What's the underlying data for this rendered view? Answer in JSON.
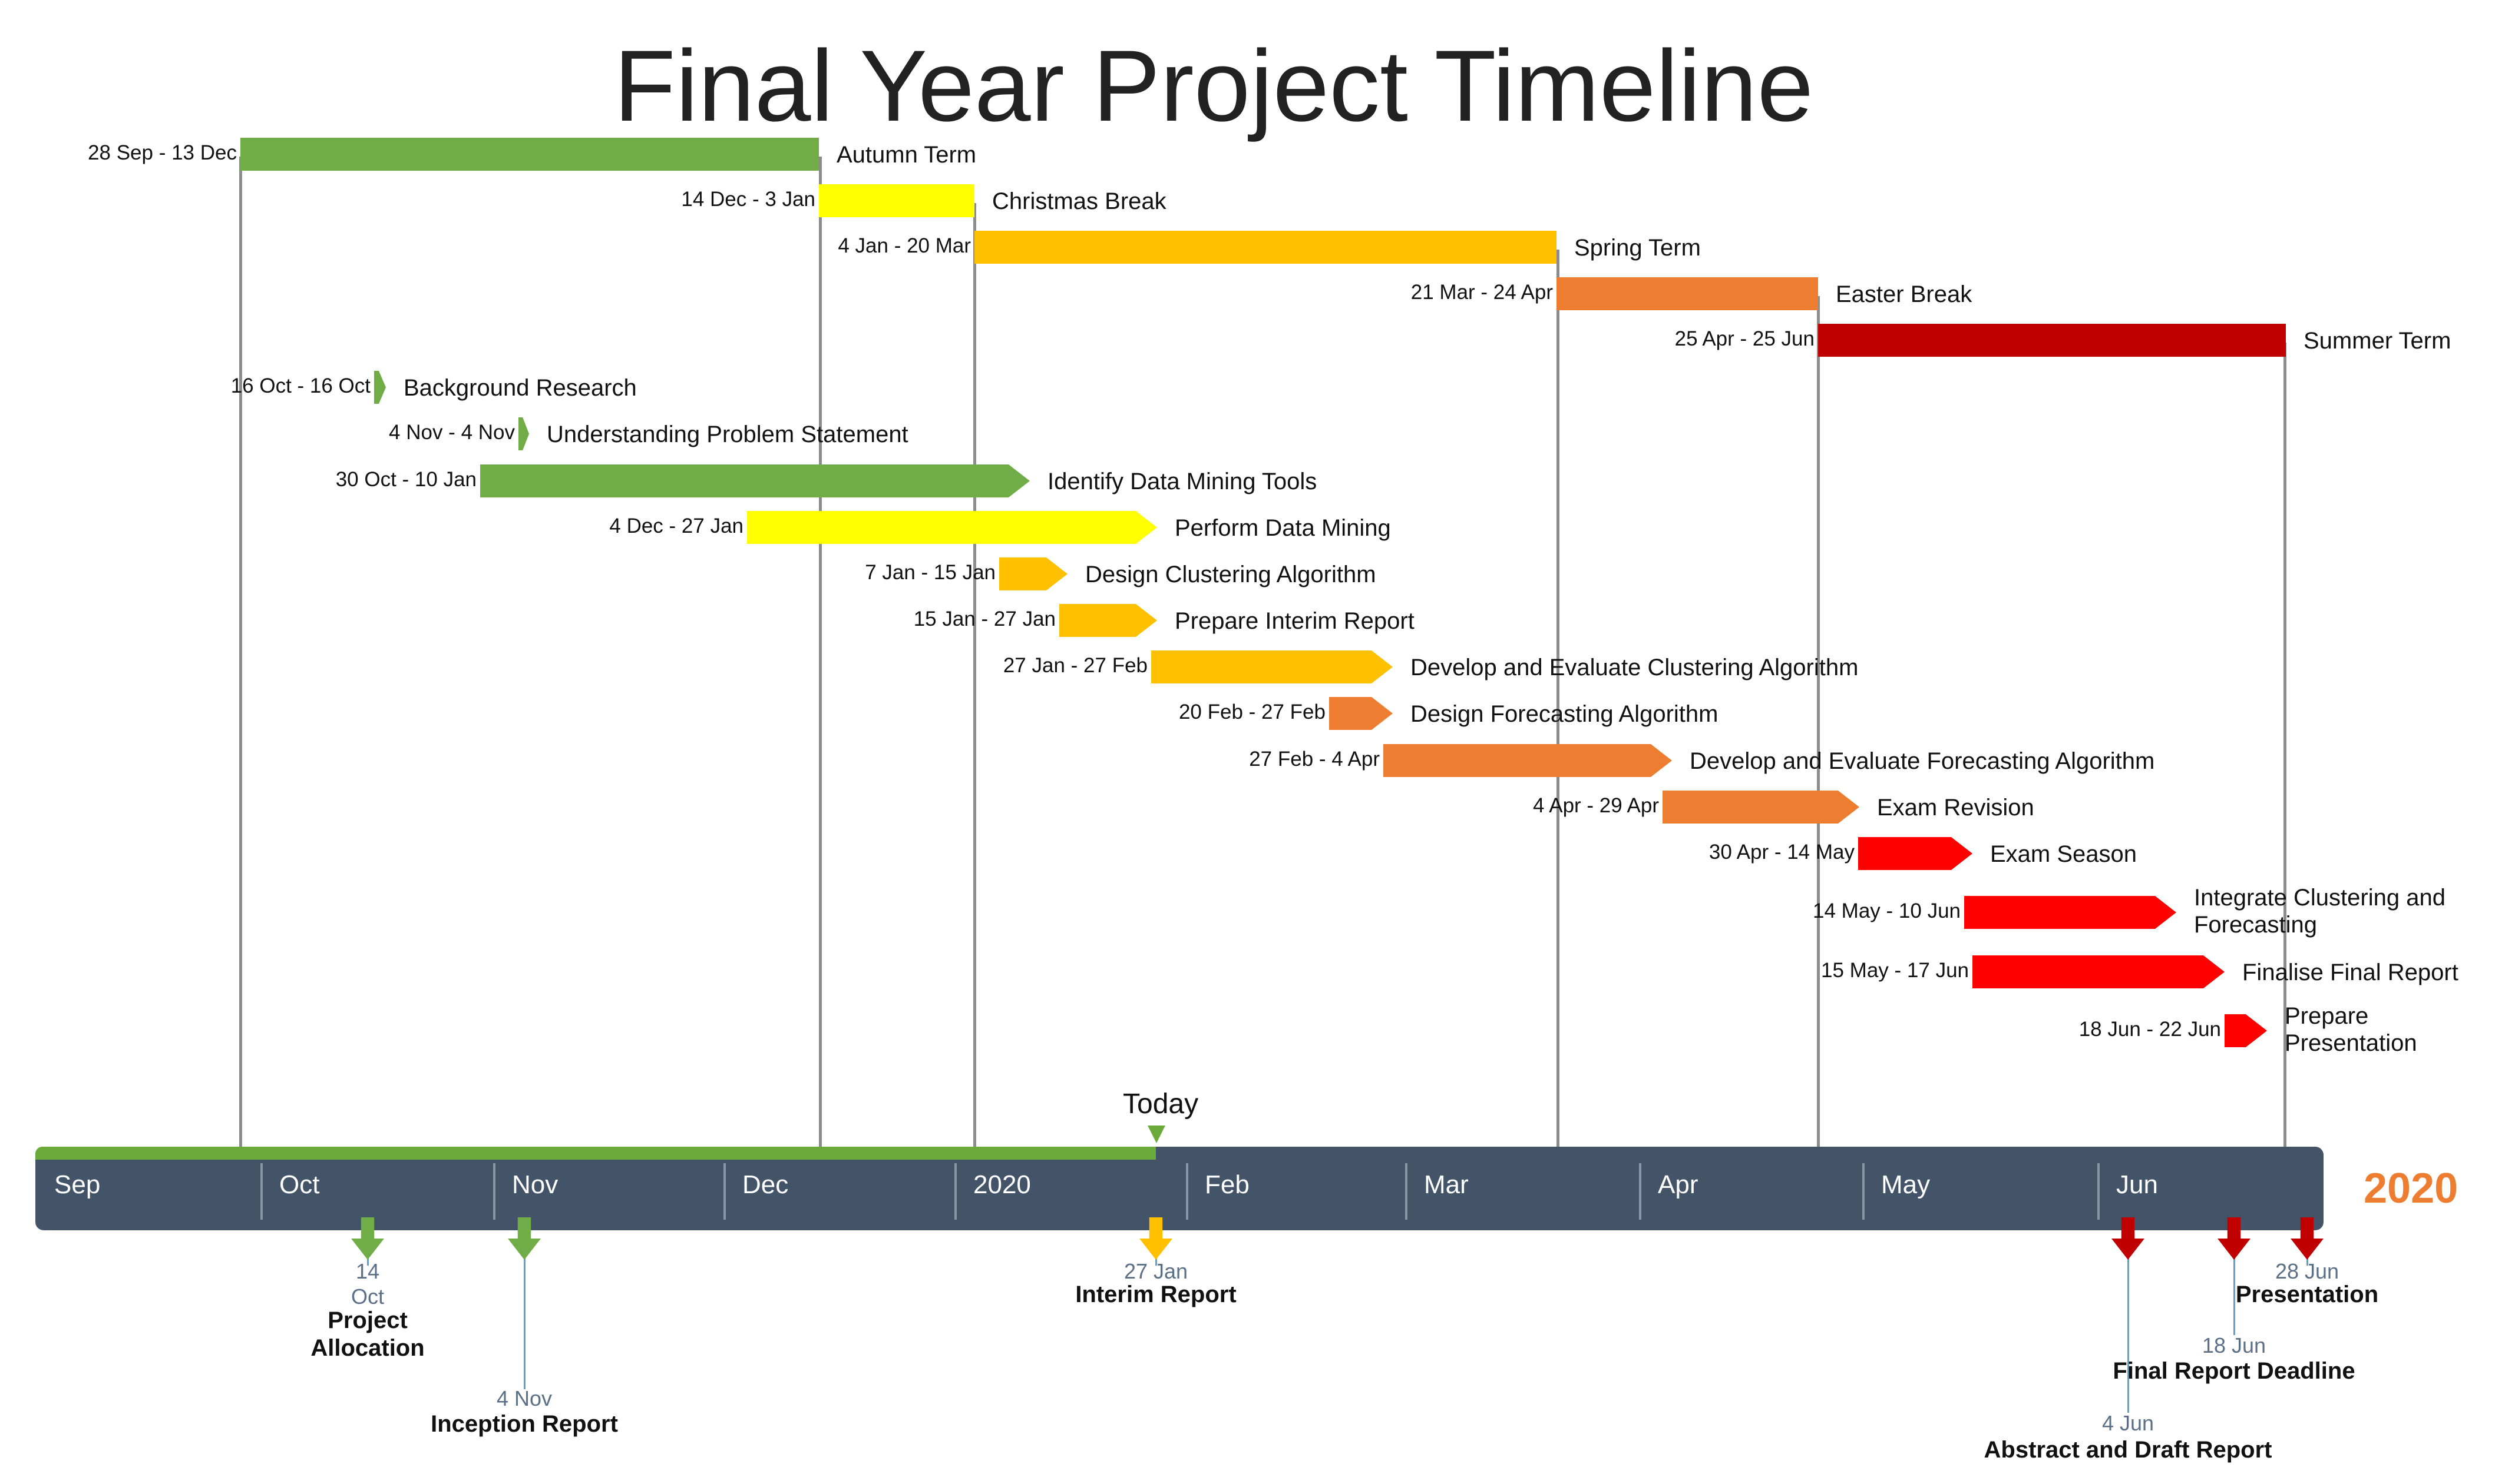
{
  "title": "Final Year Project Timeline",
  "year_label": "2020",
  "today_label": "Today",
  "months": [
    "Sep",
    "Oct",
    "Nov",
    "Dec",
    "2020",
    "Feb",
    "Mar",
    "Apr",
    "May",
    "Jun"
  ],
  "terms": [
    {
      "name": "Autumn Term",
      "dates": "28 Sep - 13 Dec",
      "color": "#70ad47"
    },
    {
      "name": "Christmas Break",
      "dates": "14 Dec - 3 Jan",
      "color": "#ffff00"
    },
    {
      "name": "Spring Term",
      "dates": "4 Jan - 20 Mar",
      "color": "#ffc000"
    },
    {
      "name": "Easter Break",
      "dates": "21 Mar - 24 Apr",
      "color": "#ed7d31"
    },
    {
      "name": "Summer Term",
      "dates": "25 Apr - 25 Jun",
      "color": "#c00000"
    }
  ],
  "tasks": [
    {
      "name": "Background Research",
      "dates": "16 Oct - 16 Oct",
      "color": "#70ad47"
    },
    {
      "name": "Understanding Problem Statement",
      "dates": "4 Nov - 4 Nov",
      "color": "#70ad47"
    },
    {
      "name": "Identify Data Mining Tools",
      "dates": "30 Oct - 10 Jan",
      "color": "#70ad47"
    },
    {
      "name": "Perform Data Mining",
      "dates": "4 Dec - 27 Jan",
      "color": "#ffff00"
    },
    {
      "name": "Design Clustering Algorithm",
      "dates": "7 Jan - 15 Jan",
      "color": "#ffc000"
    },
    {
      "name": "Prepare Interim Report",
      "dates": "15 Jan - 27 Jan",
      "color": "#ffc000"
    },
    {
      "name": "Develop and Evaluate Clustering Algorithm",
      "dates": "27 Jan - 27 Feb",
      "color": "#ffc000"
    },
    {
      "name": "Design Forecasting Algorithm",
      "dates": "20 Feb - 27 Feb",
      "color": "#ed7d31"
    },
    {
      "name": "Develop and Evaluate Forecasting Algorithm",
      "dates": "27 Feb - 4 Apr",
      "color": "#ed7d31"
    },
    {
      "name": "Exam Revision",
      "dates": "4 Apr - 29 Apr",
      "color": "#ed7d31"
    },
    {
      "name": "Exam Season",
      "dates": "30 Apr - 14 May",
      "color": "#ff0000"
    },
    {
      "name": "Integrate Clustering and\nForecasting",
      "dates": "14 May - 10 Jun",
      "color": "#ff0000"
    },
    {
      "name": "Finalise Final Report",
      "dates": "15 May - 17 Jun",
      "color": "#ff0000"
    },
    {
      "name": "Prepare\nPresentation",
      "dates": "18 Jun - 22 Jun",
      "color": "#ff0000"
    }
  ],
  "milestones": [
    {
      "name": "Project\nAllocation",
      "date": "14\nOct",
      "color": "#70ad47"
    },
    {
      "name": "Inception Report",
      "date": "4 Nov",
      "color": "#70ad47"
    },
    {
      "name": "Interim Report",
      "date": "27 Jan",
      "color": "#ffc000"
    },
    {
      "name": "Abstract and Draft Report",
      "date": "4 Jun",
      "color": "#c00000"
    },
    {
      "name": "Final Report Deadline",
      "date": "18 Jun",
      "color": "#c00000"
    },
    {
      "name": "Presentation",
      "date": "28 Jun",
      "color": "#c00000"
    }
  ]
}
